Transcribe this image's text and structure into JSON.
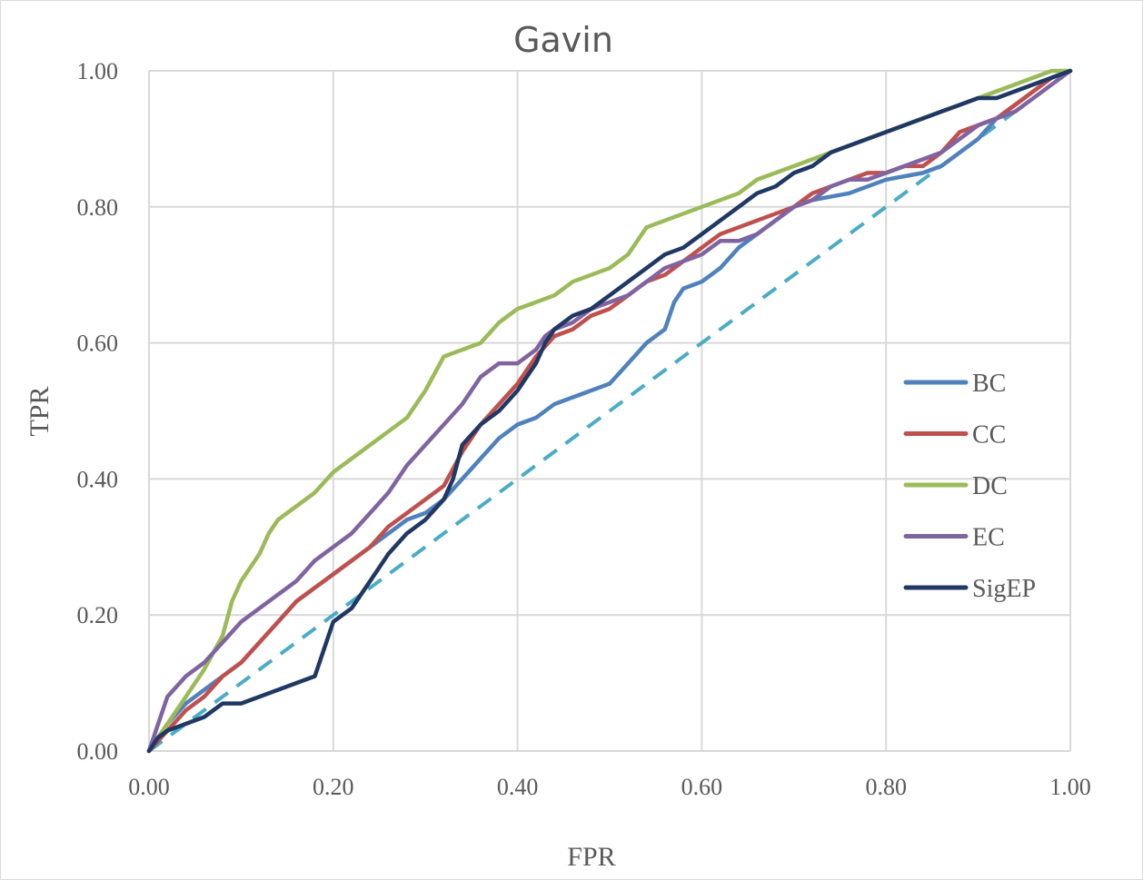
{
  "chart_data": {
    "type": "line",
    "title": "Gavin",
    "xlabel": "FPR",
    "ylabel": "TPR",
    "xlim": [
      0,
      1
    ],
    "ylim": [
      0,
      1
    ],
    "x_ticks": [
      "0.00",
      "0.20",
      "0.40",
      "0.60",
      "0.80",
      "1.00"
    ],
    "y_ticks": [
      "0.00",
      "0.20",
      "0.40",
      "0.60",
      "0.80",
      "1.00"
    ],
    "grid": true,
    "legend_position": "right",
    "series": [
      {
        "name": "BC",
        "color": "#4F81BD",
        "points": [
          [
            0,
            0
          ],
          [
            0.02,
            0.04
          ],
          [
            0.04,
            0.07
          ],
          [
            0.06,
            0.09
          ],
          [
            0.08,
            0.11
          ],
          [
            0.1,
            0.13
          ],
          [
            0.12,
            0.16
          ],
          [
            0.14,
            0.19
          ],
          [
            0.16,
            0.22
          ],
          [
            0.18,
            0.24
          ],
          [
            0.2,
            0.26
          ],
          [
            0.22,
            0.28
          ],
          [
            0.24,
            0.3
          ],
          [
            0.26,
            0.32
          ],
          [
            0.28,
            0.34
          ],
          [
            0.3,
            0.35
          ],
          [
            0.32,
            0.37
          ],
          [
            0.34,
            0.4
          ],
          [
            0.36,
            0.43
          ],
          [
            0.38,
            0.46
          ],
          [
            0.4,
            0.48
          ],
          [
            0.42,
            0.49
          ],
          [
            0.44,
            0.51
          ],
          [
            0.46,
            0.52
          ],
          [
            0.48,
            0.53
          ],
          [
            0.5,
            0.54
          ],
          [
            0.52,
            0.57
          ],
          [
            0.54,
            0.6
          ],
          [
            0.56,
            0.62
          ],
          [
            0.57,
            0.66
          ],
          [
            0.58,
            0.68
          ],
          [
            0.6,
            0.69
          ],
          [
            0.62,
            0.71
          ],
          [
            0.64,
            0.74
          ],
          [
            0.66,
            0.76
          ],
          [
            0.68,
            0.78
          ],
          [
            0.7,
            0.8
          ],
          [
            0.72,
            0.81
          ],
          [
            0.76,
            0.82
          ],
          [
            0.8,
            0.84
          ],
          [
            0.84,
            0.85
          ],
          [
            0.86,
            0.86
          ],
          [
            0.88,
            0.88
          ],
          [
            0.9,
            0.9
          ],
          [
            0.92,
            0.93
          ],
          [
            0.94,
            0.95
          ],
          [
            0.96,
            0.97
          ],
          [
            0.98,
            0.99
          ],
          [
            1.0,
            1.0
          ]
        ]
      },
      {
        "name": "CC",
        "color": "#C0504D",
        "points": [
          [
            0,
            0
          ],
          [
            0.02,
            0.03
          ],
          [
            0.04,
            0.06
          ],
          [
            0.06,
            0.08
          ],
          [
            0.08,
            0.11
          ],
          [
            0.1,
            0.13
          ],
          [
            0.12,
            0.16
          ],
          [
            0.14,
            0.19
          ],
          [
            0.16,
            0.22
          ],
          [
            0.18,
            0.24
          ],
          [
            0.2,
            0.26
          ],
          [
            0.22,
            0.28
          ],
          [
            0.24,
            0.3
          ],
          [
            0.26,
            0.33
          ],
          [
            0.28,
            0.35
          ],
          [
            0.3,
            0.37
          ],
          [
            0.32,
            0.39
          ],
          [
            0.34,
            0.44
          ],
          [
            0.36,
            0.48
          ],
          [
            0.38,
            0.51
          ],
          [
            0.4,
            0.54
          ],
          [
            0.42,
            0.58
          ],
          [
            0.44,
            0.61
          ],
          [
            0.46,
            0.62
          ],
          [
            0.48,
            0.64
          ],
          [
            0.5,
            0.65
          ],
          [
            0.52,
            0.67
          ],
          [
            0.54,
            0.69
          ],
          [
            0.56,
            0.7
          ],
          [
            0.58,
            0.72
          ],
          [
            0.6,
            0.74
          ],
          [
            0.62,
            0.76
          ],
          [
            0.64,
            0.77
          ],
          [
            0.66,
            0.78
          ],
          [
            0.68,
            0.79
          ],
          [
            0.7,
            0.8
          ],
          [
            0.72,
            0.82
          ],
          [
            0.74,
            0.83
          ],
          [
            0.76,
            0.84
          ],
          [
            0.78,
            0.85
          ],
          [
            0.8,
            0.85
          ],
          [
            0.82,
            0.86
          ],
          [
            0.84,
            0.86
          ],
          [
            0.86,
            0.88
          ],
          [
            0.88,
            0.91
          ],
          [
            0.9,
            0.92
          ],
          [
            0.92,
            0.93
          ],
          [
            0.94,
            0.95
          ],
          [
            0.96,
            0.97
          ],
          [
            0.98,
            0.99
          ],
          [
            1.0,
            1.0
          ]
        ]
      },
      {
        "name": "DC",
        "color": "#9BBB59",
        "points": [
          [
            0,
            0
          ],
          [
            0.02,
            0.04
          ],
          [
            0.04,
            0.08
          ],
          [
            0.06,
            0.12
          ],
          [
            0.08,
            0.17
          ],
          [
            0.09,
            0.22
          ],
          [
            0.1,
            0.25
          ],
          [
            0.12,
            0.29
          ],
          [
            0.13,
            0.32
          ],
          [
            0.14,
            0.34
          ],
          [
            0.16,
            0.36
          ],
          [
            0.18,
            0.38
          ],
          [
            0.2,
            0.41
          ],
          [
            0.22,
            0.43
          ],
          [
            0.24,
            0.45
          ],
          [
            0.26,
            0.47
          ],
          [
            0.28,
            0.49
          ],
          [
            0.3,
            0.53
          ],
          [
            0.32,
            0.58
          ],
          [
            0.34,
            0.59
          ],
          [
            0.36,
            0.6
          ],
          [
            0.38,
            0.63
          ],
          [
            0.4,
            0.65
          ],
          [
            0.42,
            0.66
          ],
          [
            0.44,
            0.67
          ],
          [
            0.46,
            0.69
          ],
          [
            0.48,
            0.7
          ],
          [
            0.5,
            0.71
          ],
          [
            0.52,
            0.73
          ],
          [
            0.54,
            0.77
          ],
          [
            0.56,
            0.78
          ],
          [
            0.58,
            0.79
          ],
          [
            0.6,
            0.8
          ],
          [
            0.62,
            0.81
          ],
          [
            0.64,
            0.82
          ],
          [
            0.66,
            0.84
          ],
          [
            0.68,
            0.85
          ],
          [
            0.7,
            0.86
          ],
          [
            0.72,
            0.87
          ],
          [
            0.74,
            0.88
          ],
          [
            0.76,
            0.89
          ],
          [
            0.78,
            0.9
          ],
          [
            0.8,
            0.91
          ],
          [
            0.82,
            0.92
          ],
          [
            0.84,
            0.93
          ],
          [
            0.86,
            0.94
          ],
          [
            0.88,
            0.95
          ],
          [
            0.9,
            0.96
          ],
          [
            0.92,
            0.97
          ],
          [
            0.94,
            0.98
          ],
          [
            0.96,
            0.99
          ],
          [
            0.98,
            1.0
          ],
          [
            1.0,
            1.0
          ]
        ]
      },
      {
        "name": "EC",
        "color": "#8064A2",
        "points": [
          [
            0,
            0
          ],
          [
            0.01,
            0.04
          ],
          [
            0.02,
            0.08
          ],
          [
            0.04,
            0.11
          ],
          [
            0.06,
            0.13
          ],
          [
            0.08,
            0.16
          ],
          [
            0.1,
            0.19
          ],
          [
            0.12,
            0.21
          ],
          [
            0.14,
            0.23
          ],
          [
            0.16,
            0.25
          ],
          [
            0.18,
            0.28
          ],
          [
            0.2,
            0.3
          ],
          [
            0.22,
            0.32
          ],
          [
            0.24,
            0.35
          ],
          [
            0.26,
            0.38
          ],
          [
            0.28,
            0.42
          ],
          [
            0.3,
            0.45
          ],
          [
            0.32,
            0.48
          ],
          [
            0.34,
            0.51
          ],
          [
            0.36,
            0.55
          ],
          [
            0.38,
            0.57
          ],
          [
            0.4,
            0.57
          ],
          [
            0.42,
            0.59
          ],
          [
            0.43,
            0.61
          ],
          [
            0.44,
            0.62
          ],
          [
            0.46,
            0.63
          ],
          [
            0.48,
            0.65
          ],
          [
            0.5,
            0.66
          ],
          [
            0.52,
            0.67
          ],
          [
            0.54,
            0.69
          ],
          [
            0.56,
            0.71
          ],
          [
            0.58,
            0.72
          ],
          [
            0.6,
            0.73
          ],
          [
            0.62,
            0.75
          ],
          [
            0.64,
            0.75
          ],
          [
            0.66,
            0.76
          ],
          [
            0.68,
            0.78
          ],
          [
            0.7,
            0.8
          ],
          [
            0.72,
            0.81
          ],
          [
            0.74,
            0.83
          ],
          [
            0.76,
            0.84
          ],
          [
            0.78,
            0.84
          ],
          [
            0.8,
            0.85
          ],
          [
            0.82,
            0.86
          ],
          [
            0.84,
            0.87
          ],
          [
            0.86,
            0.88
          ],
          [
            0.88,
            0.9
          ],
          [
            0.9,
            0.92
          ],
          [
            0.92,
            0.93
          ],
          [
            0.94,
            0.94
          ],
          [
            0.96,
            0.96
          ],
          [
            0.98,
            0.98
          ],
          [
            1.0,
            1.0
          ]
        ]
      },
      {
        "name": "SigEP",
        "color": "#1F3864",
        "points": [
          [
            0,
            0
          ],
          [
            0.01,
            0.02
          ],
          [
            0.02,
            0.03
          ],
          [
            0.04,
            0.04
          ],
          [
            0.06,
            0.05
          ],
          [
            0.08,
            0.07
          ],
          [
            0.1,
            0.07
          ],
          [
            0.12,
            0.08
          ],
          [
            0.14,
            0.09
          ],
          [
            0.16,
            0.1
          ],
          [
            0.18,
            0.11
          ],
          [
            0.185,
            0.13
          ],
          [
            0.2,
            0.19
          ],
          [
            0.22,
            0.21
          ],
          [
            0.24,
            0.25
          ],
          [
            0.26,
            0.29
          ],
          [
            0.28,
            0.32
          ],
          [
            0.3,
            0.34
          ],
          [
            0.32,
            0.37
          ],
          [
            0.33,
            0.4
          ],
          [
            0.34,
            0.45
          ],
          [
            0.36,
            0.48
          ],
          [
            0.38,
            0.5
          ],
          [
            0.4,
            0.53
          ],
          [
            0.42,
            0.57
          ],
          [
            0.43,
            0.6
          ],
          [
            0.44,
            0.62
          ],
          [
            0.46,
            0.64
          ],
          [
            0.48,
            0.65
          ],
          [
            0.5,
            0.67
          ],
          [
            0.52,
            0.69
          ],
          [
            0.54,
            0.71
          ],
          [
            0.56,
            0.73
          ],
          [
            0.58,
            0.74
          ],
          [
            0.6,
            0.76
          ],
          [
            0.62,
            0.78
          ],
          [
            0.64,
            0.8
          ],
          [
            0.66,
            0.82
          ],
          [
            0.68,
            0.83
          ],
          [
            0.7,
            0.85
          ],
          [
            0.72,
            0.86
          ],
          [
            0.74,
            0.88
          ],
          [
            0.76,
            0.89
          ],
          [
            0.78,
            0.9
          ],
          [
            0.8,
            0.91
          ],
          [
            0.82,
            0.92
          ],
          [
            0.84,
            0.93
          ],
          [
            0.86,
            0.94
          ],
          [
            0.88,
            0.95
          ],
          [
            0.9,
            0.96
          ],
          [
            0.92,
            0.96
          ],
          [
            0.94,
            0.97
          ],
          [
            0.96,
            0.98
          ],
          [
            0.98,
            0.99
          ],
          [
            1.0,
            1.0
          ]
        ]
      },
      {
        "color": "#4BACC6",
        "dashed": true,
        "points": [
          [
            0,
            0
          ],
          [
            1,
            1
          ]
        ]
      }
    ]
  }
}
